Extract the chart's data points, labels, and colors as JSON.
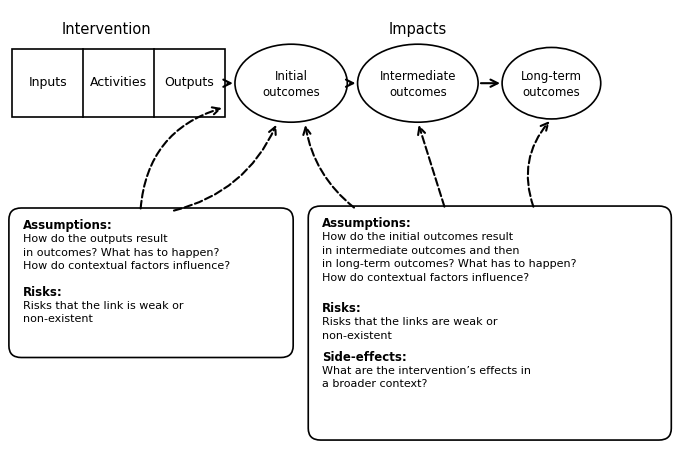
{
  "title_intervention": "Intervention",
  "title_impacts": "Impacts",
  "box_labels": [
    "Inputs",
    "Activities",
    "Outputs"
  ],
  "ellipse_labels": [
    [
      "Initial",
      "outcomes"
    ],
    [
      "Intermediate",
      "outcomes"
    ],
    [
      "Long-term",
      "outcomes"
    ]
  ],
  "box1_text_bold": "Assumptions:",
  "box1_text_normal": "How do the outputs result\nin outcomes? What has to happen?\nHow do contextual factors influence?",
  "box1_text_bold2": "Risks:",
  "box1_text_normal2": "Risks that the link is weak or\nnon-existent",
  "box2_text_bold": "Assumptions:",
  "box2_text_normal": "How do the initial outcomes result\nin intermediate outcomes and then\nin long-term outcomes? What has to happen?\nHow do contextual factors influence?",
  "box2_text_bold2": "Risks:",
  "box2_text_normal2": "Risks that the links are weak or\nnon-existent",
  "box2_text_bold3": "Side-effects:",
  "box2_text_normal3": "What are the intervention’s effects in\na broader context?",
  "bg_color": "#ffffff",
  "border_color": "#000000",
  "text_color": "#000000",
  "arrow_color": "#000000",
  "xlim": [
    0,
    10
  ],
  "ylim": [
    0,
    7
  ],
  "figwidth": 6.85,
  "figheight": 4.55,
  "dpi": 100
}
